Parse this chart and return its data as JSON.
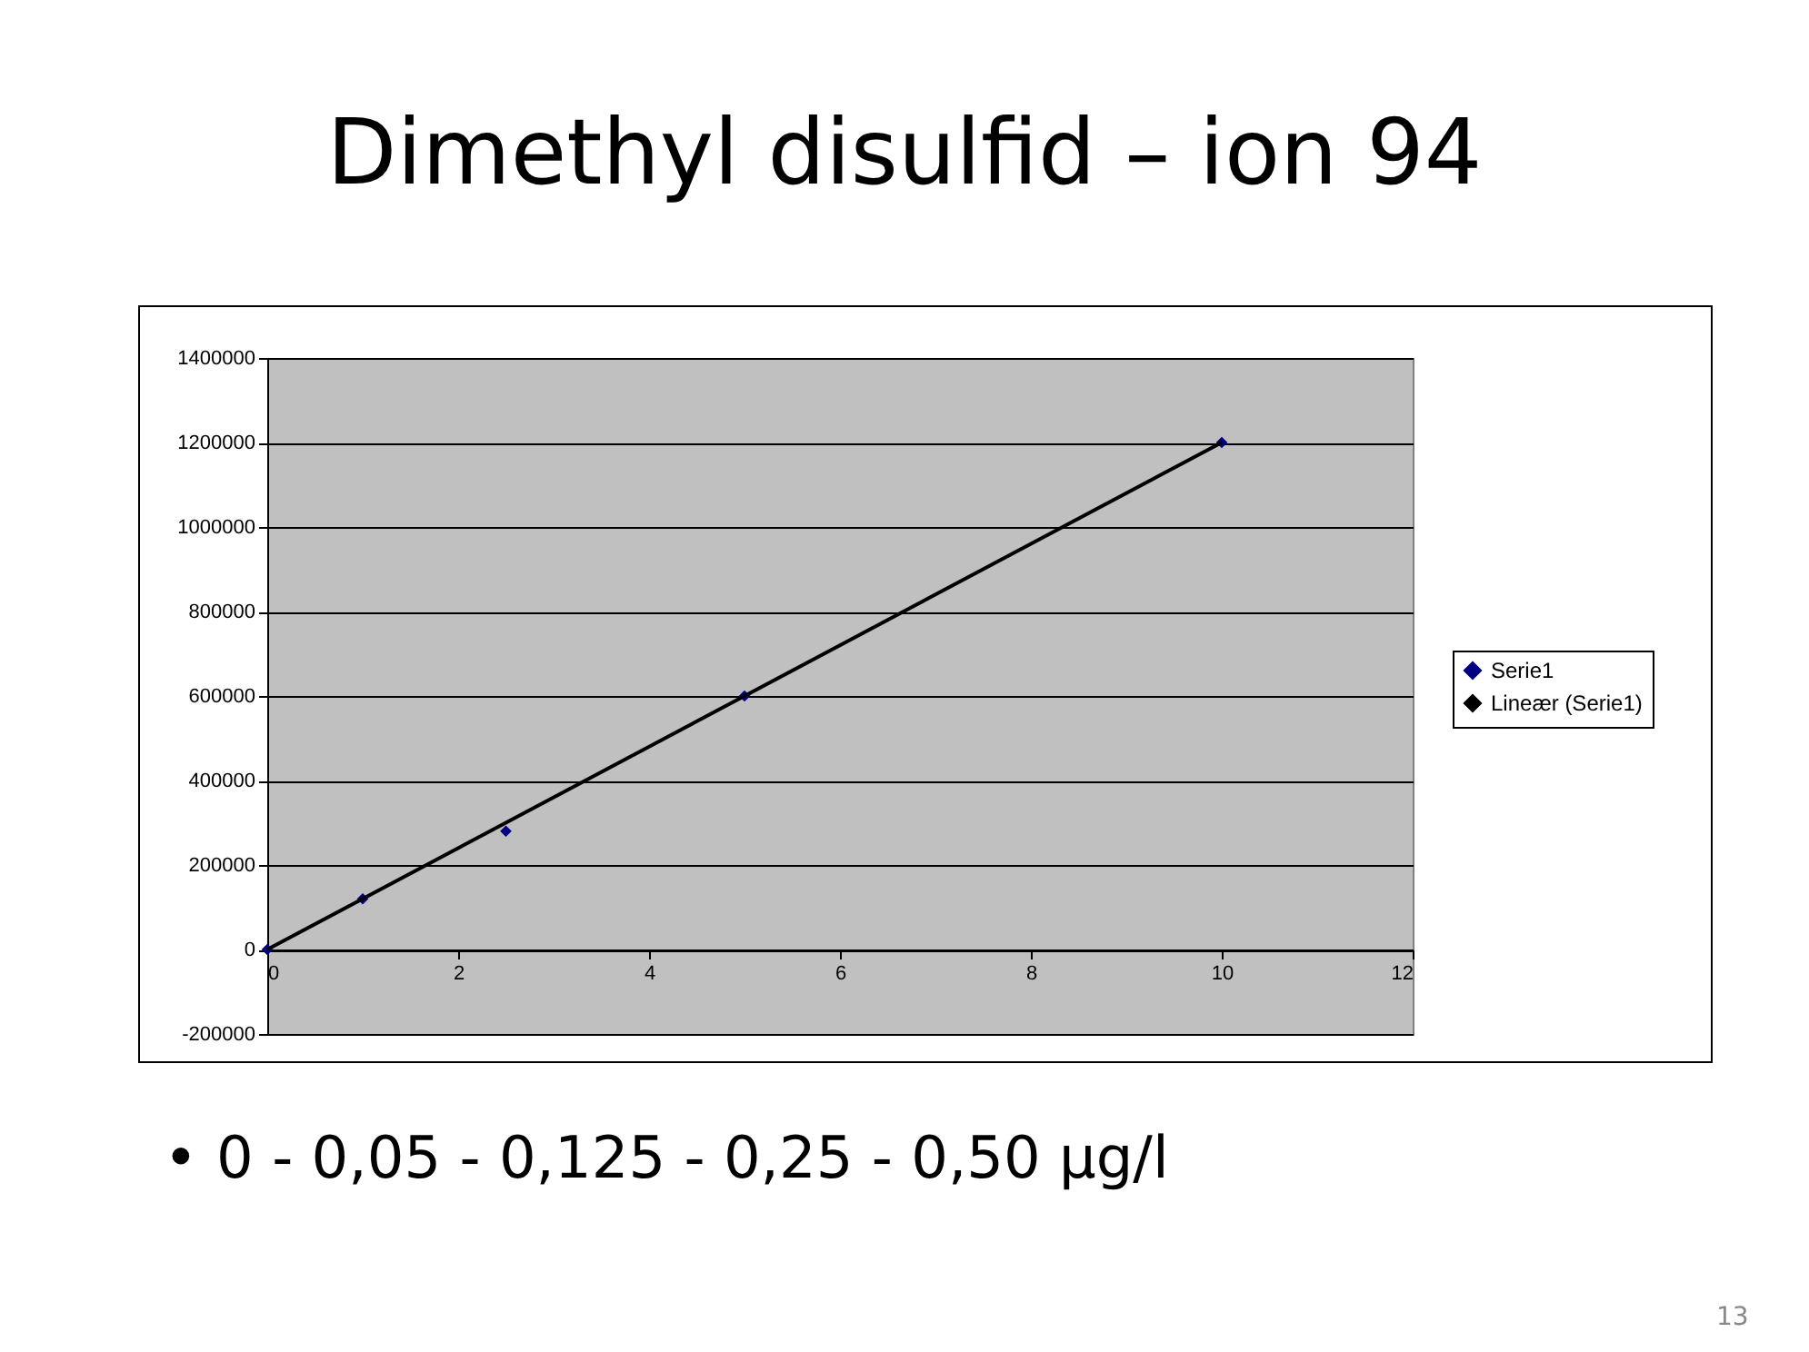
{
  "chart_data": {
    "type": "scatter",
    "title": "Dimethyl disulfid – ion 94",
    "annotations": [
      "• 0 - 0,05 - 0,125 - 0,25 - 0,50 µg/l",
      "13"
    ],
    "x": [
      0,
      1,
      2.5,
      5,
      10
    ],
    "series": [
      {
        "name": "Serie1",
        "color": "#000080",
        "marker": "diamond",
        "values": [
          0,
          120000,
          280000,
          600000,
          1200000
        ]
      },
      {
        "name": "Lineær (Serie1)",
        "color": "#000000",
        "type": "line",
        "x": [
          0,
          10
        ],
        "values": [
          0,
          1200000
        ]
      }
    ],
    "xlim": [
      0,
      12
    ],
    "xticks": [
      0,
      2,
      4,
      6,
      8,
      10,
      12
    ],
    "ylim": [
      -200000,
      1400000
    ],
    "yticks": [
      -200000,
      0,
      200000,
      400000,
      600000,
      800000,
      1000000,
      1200000,
      1400000
    ],
    "grid": "y",
    "legend": "right"
  }
}
